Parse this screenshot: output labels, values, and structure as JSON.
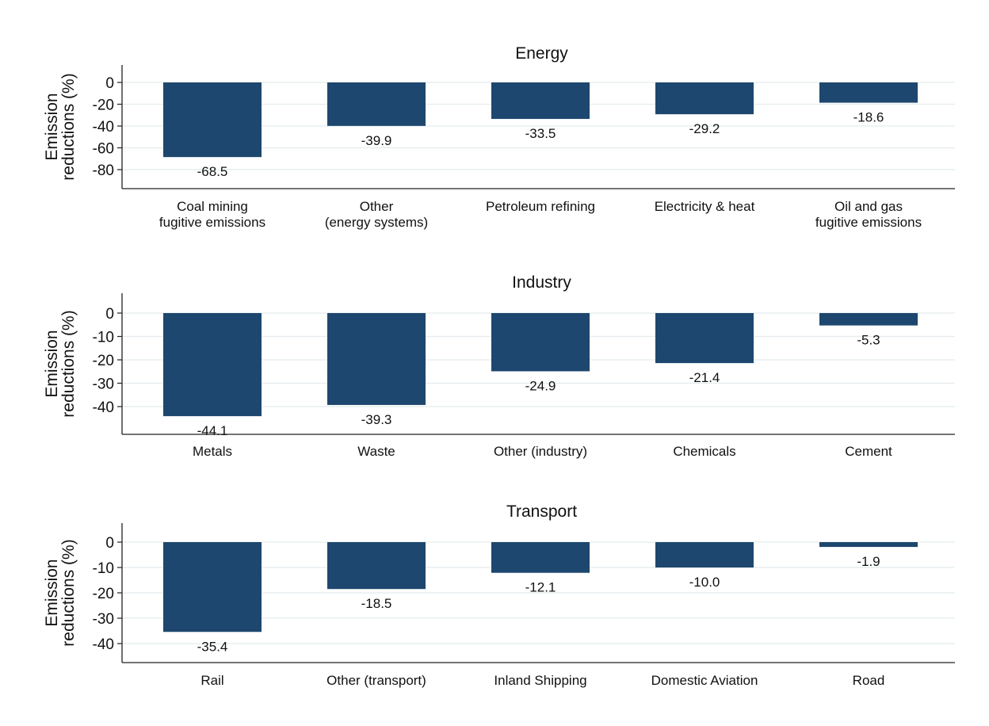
{
  "colors": {
    "bar": "#1d476e",
    "grid": "#e4ecef",
    "axis": "#222222",
    "background": "#ffffff"
  },
  "chart_data": [
    {
      "type": "bar",
      "title": "Energy",
      "ylabel": [
        "Emission",
        "reductions (%)"
      ],
      "categories": [
        [
          "Coal mining",
          "fugitive emissions"
        ],
        [
          "Other",
          "(energy systems)"
        ],
        [
          "Petroleum refining"
        ],
        [
          "Electricity & heat"
        ],
        [
          "Oil and gas",
          "fugitive emissions"
        ]
      ],
      "values": [
        -68.5,
        -39.9,
        -33.5,
        -29.2,
        -18.6
      ],
      "data_labels": [
        "-68.5",
        "-39.9",
        "-33.5",
        "-29.2",
        "-18.6"
      ],
      "yticks": [
        0,
        -20,
        -40,
        -60,
        -80
      ],
      "ylim": [
        -95,
        15
      ],
      "grid": true
    },
    {
      "type": "bar",
      "title": "Industry",
      "ylabel": [
        "Emission",
        "reductions (%)"
      ],
      "categories": [
        [
          "Metals"
        ],
        [
          "Waste"
        ],
        [
          "Other (industry)"
        ],
        [
          "Chemicals"
        ],
        [
          "Cement"
        ]
      ],
      "values": [
        -44.1,
        -39.3,
        -24.9,
        -21.4,
        -5.3
      ],
      "data_labels": [
        "-44.1",
        "-39.3",
        "-24.9",
        "-21.4",
        "-5.3"
      ],
      "yticks": [
        0,
        -10,
        -20,
        -30,
        -40
      ],
      "ylim": [
        -51,
        8
      ],
      "grid": true
    },
    {
      "type": "bar",
      "title": "Transport",
      "ylabel": [
        "Emission",
        "reductions (%)"
      ],
      "categories": [
        [
          "Rail"
        ],
        [
          "Other (transport)"
        ],
        [
          "Inland Shipping"
        ],
        [
          "Domestic Aviation"
        ],
        [
          "Road"
        ]
      ],
      "values": [
        -35.4,
        -18.5,
        -12.1,
        -10.0,
        -1.9
      ],
      "data_labels": [
        "-35.4",
        "-18.5",
        "-12.1",
        "-10.0",
        "-1.9"
      ],
      "yticks": [
        0,
        -10,
        -20,
        -30,
        -40
      ],
      "ylim": [
        -47,
        7
      ],
      "grid": true
    }
  ]
}
